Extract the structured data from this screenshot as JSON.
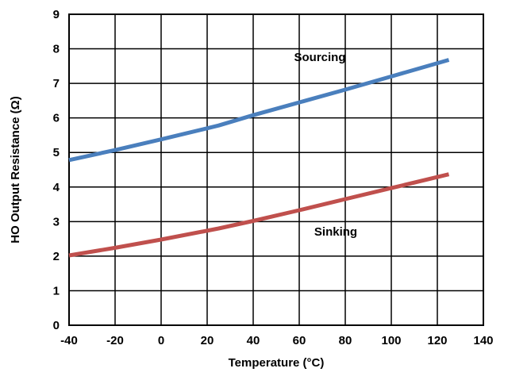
{
  "chart_data": {
    "type": "line",
    "title": "",
    "xlabel": "Temperature (°C)",
    "ylabel": "HO Output Resistance (Ω)",
    "xlim": [
      -40,
      140
    ],
    "ylim": [
      0,
      9
    ],
    "x_ticks": [
      -40,
      -20,
      0,
      20,
      40,
      60,
      80,
      100,
      120,
      140
    ],
    "y_ticks": [
      0,
      1,
      2,
      3,
      4,
      5,
      6,
      7,
      8,
      9
    ],
    "grid": true,
    "legend": "none",
    "series": [
      {
        "name": "Sourcing",
        "color": "#4a7fbd",
        "x": [
          -40,
          -20,
          0,
          25,
          40,
          60,
          80,
          100,
          125
        ],
        "y": [
          4.78,
          5.07,
          5.38,
          5.78,
          6.08,
          6.45,
          6.82,
          7.2,
          7.68
        ]
      },
      {
        "name": "Sinking",
        "color": "#c0504d",
        "x": [
          -40,
          -20,
          0,
          25,
          40,
          60,
          80,
          100,
          125
        ],
        "y": [
          2.02,
          2.24,
          2.48,
          2.8,
          3.02,
          3.33,
          3.65,
          3.97,
          4.37
        ]
      }
    ]
  }
}
